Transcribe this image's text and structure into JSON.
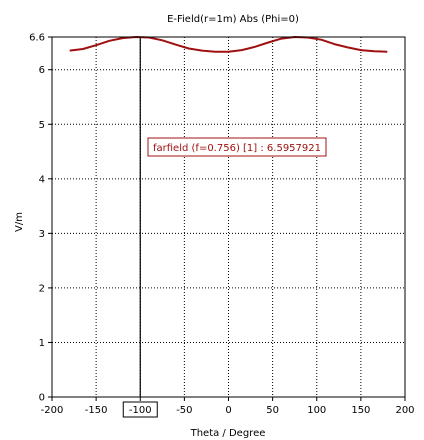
{
  "chart_data": {
    "type": "line",
    "title": "E-Field(r=1m) Abs (Phi=0)",
    "xlabel": "Theta / Degree",
    "ylabel": "V/m",
    "xlim": [
      -200,
      200
    ],
    "ylim": [
      0,
      6.6
    ],
    "x_ticks": [
      -200,
      -150,
      -100,
      -50,
      0,
      50,
      100,
      150,
      200
    ],
    "x_tick_labels": [
      "-200",
      "-150",
      "-100",
      "-50",
      "0",
      "50",
      "100",
      "150",
      "200"
    ],
    "y_ticks": [
      0,
      1,
      2,
      3,
      4,
      5,
      6,
      6.6
    ],
    "y_tick_labels": [
      "0",
      "1",
      "2",
      "3",
      "4",
      "5",
      "6",
      "6.6"
    ],
    "grid": true,
    "series": [
      {
        "color": "#a01010",
        "x": [
          -180,
          -165,
          -150,
          -135,
          -120,
          -105,
          -90,
          -75,
          -60,
          -45,
          -30,
          -15,
          0,
          15,
          30,
          45,
          60,
          75,
          90,
          105,
          120,
          135,
          150,
          165,
          180
        ],
        "y": [
          6.35,
          6.38,
          6.45,
          6.53,
          6.58,
          6.6,
          6.59,
          6.54,
          6.46,
          6.39,
          6.35,
          6.33,
          6.33,
          6.36,
          6.42,
          6.5,
          6.57,
          6.6,
          6.59,
          6.55,
          6.47,
          6.41,
          6.36,
          6.34,
          6.33
        ]
      }
    ],
    "marker": {
      "x": -100,
      "label": "-100"
    },
    "annotation": {
      "text": "farfield (f=0.756) [1] : 6.5957921",
      "color": "#a01010"
    }
  }
}
